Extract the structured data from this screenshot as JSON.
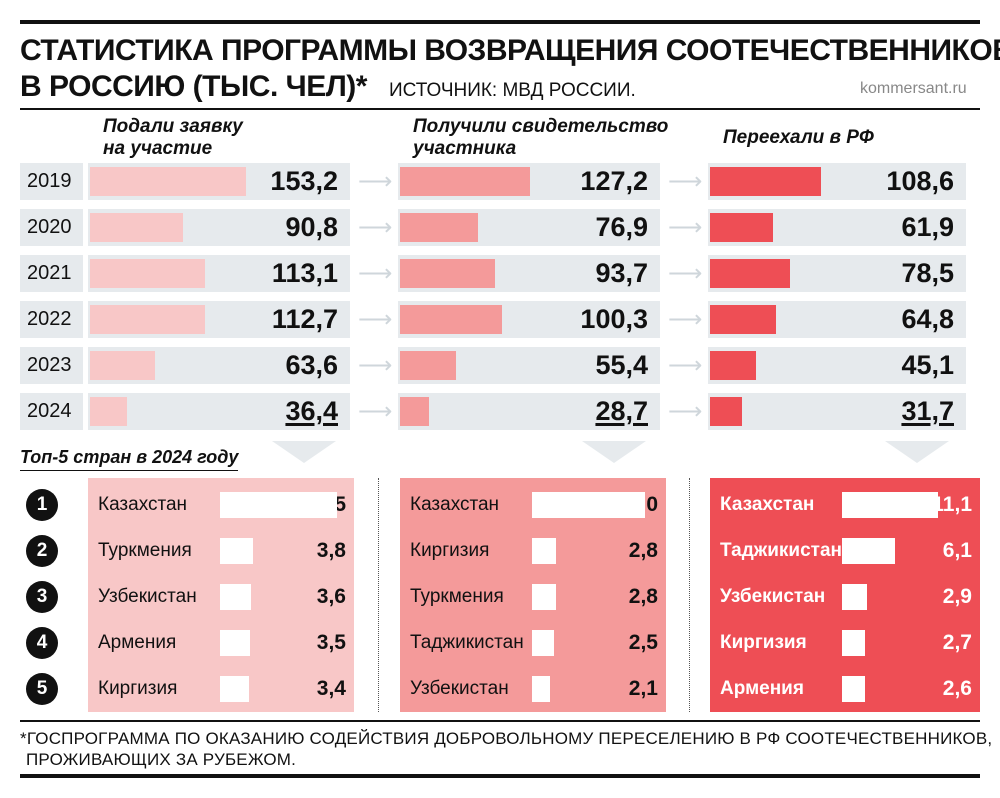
{
  "title_line1": "СТАТИСТИКА ПРОГРАММЫ ВОЗВРАЩЕНИЯ СООТЕЧЕСТВЕННИКОВ",
  "title_line2": "В РОССИЮ (ТЫС. ЧЕЛ)*",
  "source": "ИСТОЧНИК: МВД РОССИИ.",
  "site": "kommersant.ru",
  "top5_title": "Топ-5 стран в 2024 году",
  "footnote_line1": "*ГОСПРОГРАММА ПО ОКАЗАНИЮ СОДЕЙСТВИЯ ДОБРОВОЛЬНОМУ ПЕРЕСЕЛЕНИЮ В РФ СООТЕЧЕСТВЕННИКОВ,",
  "footnote_line2": "ПРОЖИВАЮЩИХ ЗА РУБЕЖОМ.",
  "colors": {
    "applied": "#f8c7c7",
    "certified": "#f49a9a",
    "moved": "#ee4e55",
    "row_bg": "#e6eaed"
  },
  "chart_data": [
    {
      "type": "bar",
      "categories": [
        "2019",
        "2020",
        "2021",
        "2022",
        "2023",
        "2024"
      ],
      "series": [
        {
          "name": "Подали заявку на участие",
          "values": [
            153.2,
            90.8,
            113.1,
            112.7,
            63.6,
            36.4
          ],
          "labels": [
            "153,2",
            "90,8",
            "113,1",
            "112,7",
            "63,6",
            "36,4"
          ]
        },
        {
          "name": "Получили свидетельство участника",
          "values": [
            127.2,
            76.9,
            93.7,
            100.3,
            55.4,
            28.7
          ],
          "labels": [
            "127,2",
            "76,9",
            "93,7",
            "100,3",
            "55,4",
            "28,7"
          ]
        },
        {
          "name": "Переехали в РФ",
          "values": [
            108.6,
            61.9,
            78.5,
            64.8,
            45.1,
            31.7
          ],
          "labels": [
            "108,6",
            "61,9",
            "78,5",
            "64,8",
            "45,1",
            "31,7"
          ]
        }
      ]
    },
    {
      "type": "bar",
      "ranks": [
        "1",
        "2",
        "3",
        "4",
        "5"
      ],
      "panels": [
        {
          "countries": [
            "Казахстан",
            "Туркмения",
            "Узбекистан",
            "Армения",
            "Киргизия"
          ],
          "values": [
            13.5,
            3.8,
            3.6,
            3.5,
            3.4
          ],
          "labels": [
            "13,5",
            "3,8",
            "3,6",
            "3,5",
            "3,4"
          ]
        },
        {
          "countries": [
            "Казахстан",
            "Киргизия",
            "Туркмения",
            "Таджикистан",
            "Узбекистан"
          ],
          "values": [
            13.0,
            2.8,
            2.8,
            2.5,
            2.1
          ],
          "labels": [
            "13,0",
            "2,8",
            "2,8",
            "2,5",
            "2,1"
          ]
        },
        {
          "countries": [
            "Казахстан",
            "Таджикистан",
            "Узбекистан",
            "Киргизия",
            "Армения"
          ],
          "values": [
            11.1,
            6.1,
            2.9,
            2.7,
            2.6
          ],
          "labels": [
            "11,1",
            "6,1",
            "2,9",
            "2,7",
            "2,6"
          ]
        }
      ]
    }
  ]
}
